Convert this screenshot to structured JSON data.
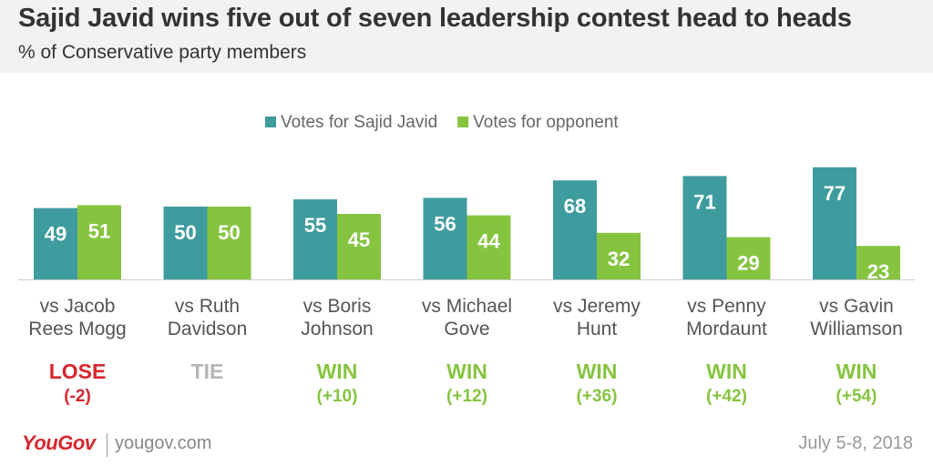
{
  "header": {
    "title": "Sajid Javid wins five out of seven leadership contest head to heads",
    "subtitle": "% of Conservative party members"
  },
  "chart_data": {
    "type": "bar",
    "categories": [
      [
        "vs Jacob",
        "Rees Mogg"
      ],
      [
        "vs Ruth",
        "Davidson"
      ],
      [
        "vs Boris",
        "Johnson"
      ],
      [
        "vs Michael",
        "Gove"
      ],
      [
        "vs Jeremy",
        "Hunt"
      ],
      [
        "vs Penny",
        "Mordaunt"
      ],
      [
        "vs Gavin",
        "Williamson"
      ]
    ],
    "series": [
      {
        "name": "Votes for Sajid Javid",
        "color": "#3f9c9e",
        "values": [
          49,
          50,
          55,
          56,
          68,
          71,
          77
        ]
      },
      {
        "name": "Votes for opponent",
        "color": "#86c440",
        "values": [
          51,
          50,
          45,
          44,
          32,
          29,
          23
        ]
      }
    ],
    "outcomes": [
      {
        "result": "LOSE",
        "margin": "(-2)",
        "color": "#d7262e"
      },
      {
        "result": "TIE",
        "margin": "",
        "color": "#b5b5b5"
      },
      {
        "result": "WIN",
        "margin": "(+10)",
        "color": "#86c440"
      },
      {
        "result": "WIN",
        "margin": "(+12)",
        "color": "#86c440"
      },
      {
        "result": "WIN",
        "margin": "(+36)",
        "color": "#86c440"
      },
      {
        "result": "WIN",
        "margin": "(+42)",
        "color": "#86c440"
      },
      {
        "result": "WIN",
        "margin": "(+54)",
        "color": "#86c440"
      }
    ],
    "legend_position": "top-center",
    "grid": false
  },
  "footer": {
    "logo": "YouGov",
    "url": "yougov.com",
    "date": "July 5-8, 2018"
  }
}
